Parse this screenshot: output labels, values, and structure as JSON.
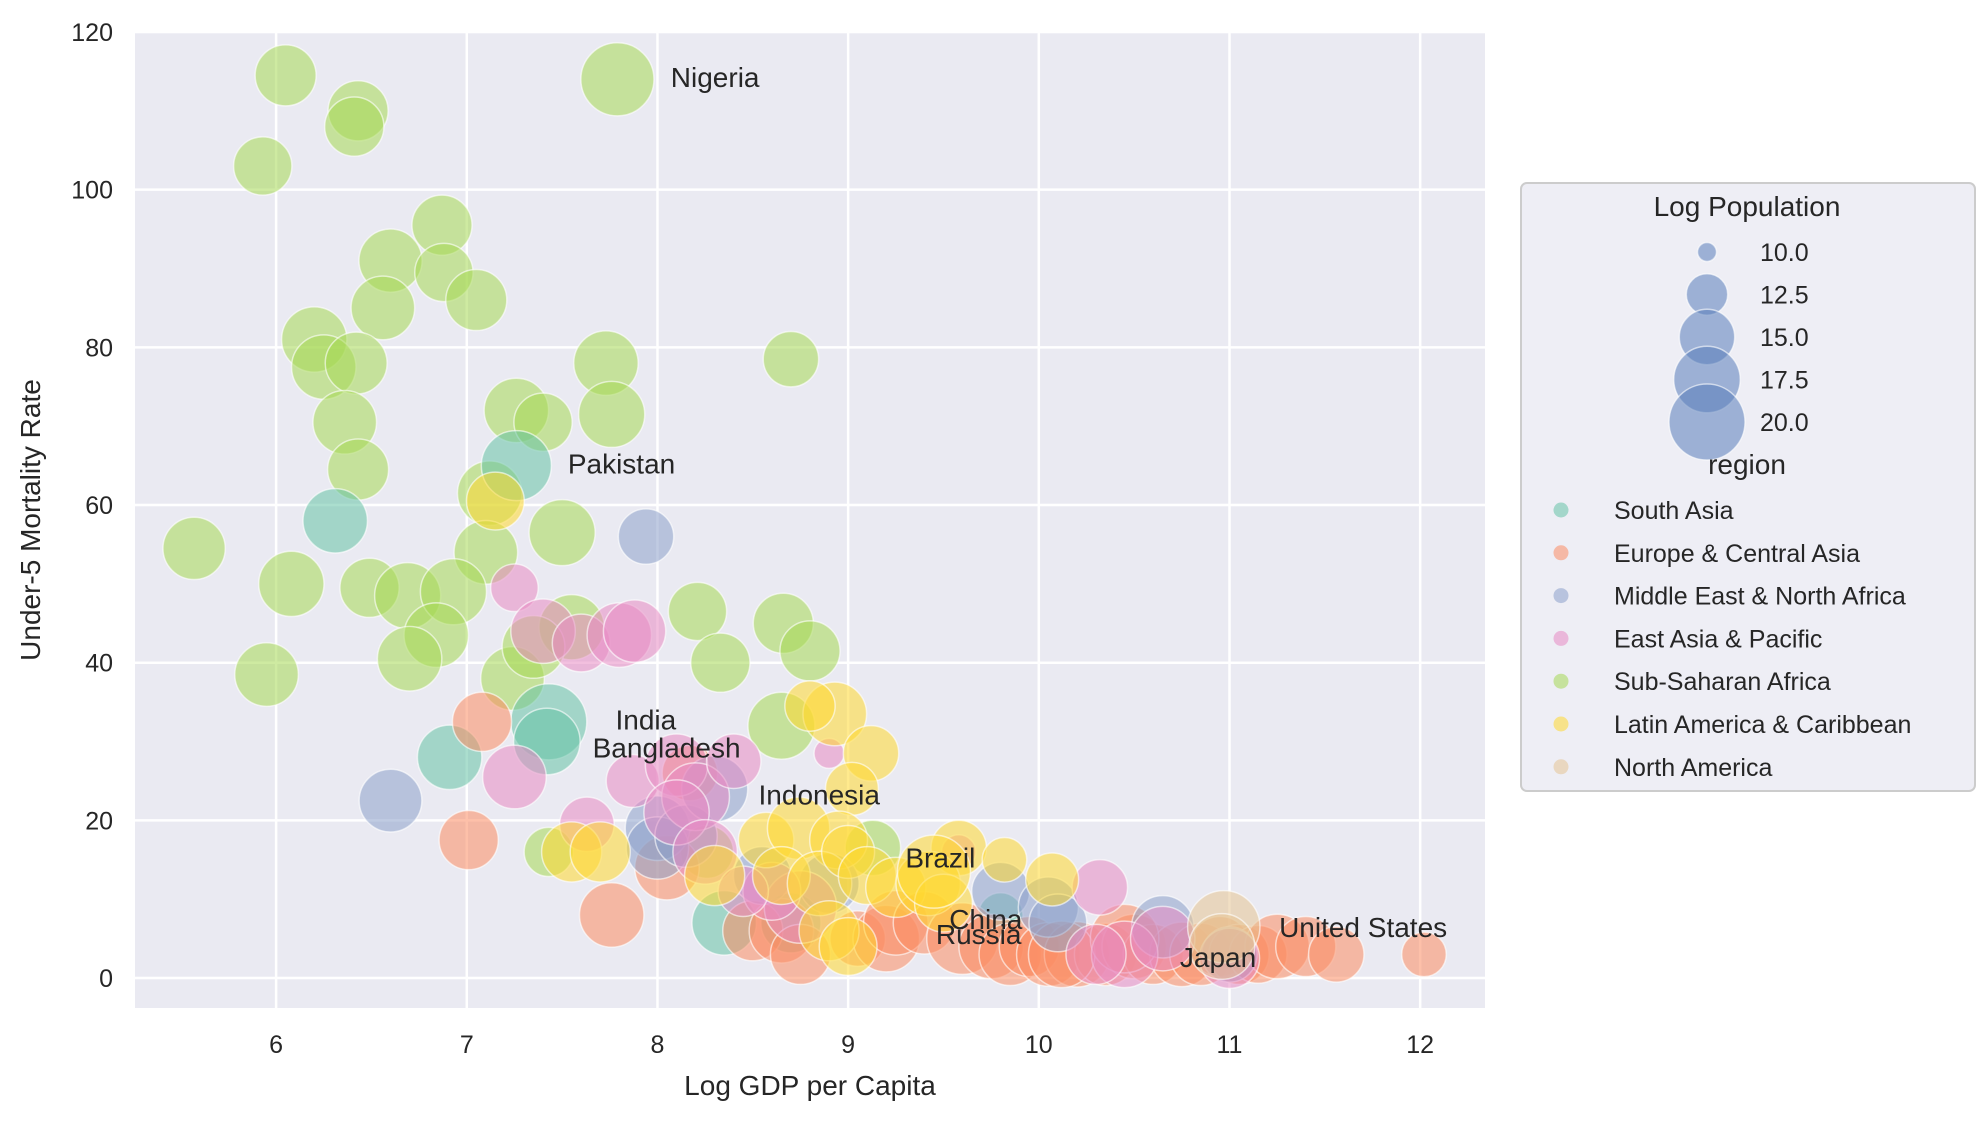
{
  "chart_data": {
    "type": "scatter",
    "title": "",
    "xlabel": "Log GDP per Capita",
    "ylabel": "Under-5 Mortality Rate",
    "xlim": [
      5.26,
      12.34
    ],
    "ylim": [
      -3.8,
      120
    ],
    "xticks": [
      6,
      7,
      8,
      9,
      10,
      11,
      12
    ],
    "yticks": [
      0,
      20,
      40,
      60,
      80,
      100,
      120
    ],
    "grid": true,
    "legend_placement": "right-outside",
    "size_legend": {
      "title": "Log Population",
      "values": [
        10.0,
        12.5,
        15.0,
        17.5,
        20.0
      ],
      "labels": [
        "10.0",
        "12.5",
        "15.0",
        "17.5",
        "20.0"
      ]
    },
    "hue_legend": {
      "title": "region",
      "entries": [
        {
          "name": "South Asia",
          "color": "#66c2a5"
        },
        {
          "name": "Europe & Central Asia",
          "color": "#fc8d62"
        },
        {
          "name": "Middle East & North Africa",
          "color": "#8da0cb"
        },
        {
          "name": "East Asia & Pacific",
          "color": "#e78ac3"
        },
        {
          "name": "Sub-Saharan Africa",
          "color": "#a6d854"
        },
        {
          "name": "Latin America & Caribbean",
          "color": "#ffd92f"
        },
        {
          "name": "North America",
          "color": "#e5c494"
        }
      ]
    },
    "annotations": [
      {
        "text": "Nigeria",
        "x": 8.07,
        "y": 113
      },
      {
        "text": "Pakistan",
        "x": 7.53,
        "y": 64
      },
      {
        "text": "India",
        "x": 7.78,
        "y": 31.5
      },
      {
        "text": "Bangladesh",
        "x": 7.66,
        "y": 28
      },
      {
        "text": "Indonesia",
        "x": 8.53,
        "y": 22
      },
      {
        "text": "Brazil",
        "x": 9.3,
        "y": 14
      },
      {
        "text": "China",
        "x": 9.53,
        "y": 6.2
      },
      {
        "text": "Russia",
        "x": 9.46,
        "y": 4.3
      },
      {
        "text": "Japan",
        "x": 10.74,
        "y": 1.4
      },
      {
        "text": "United States",
        "x": 11.26,
        "y": 5.2
      }
    ],
    "series": [
      {
        "name": "Sub-Saharan Africa",
        "points": [
          [
            6.05,
            114.5,
            16.2
          ],
          [
            6.43,
            110,
            16.0
          ],
          [
            6.41,
            108,
            15.8
          ],
          [
            5.93,
            103,
            15.6
          ],
          [
            7.79,
            114,
            19.2
          ],
          [
            6.87,
            95.5,
            16.0
          ],
          [
            6.6,
            91,
            16.7
          ],
          [
            6.88,
            89.5,
            15.6
          ],
          [
            7.05,
            86,
            16.2
          ],
          [
            6.56,
            85,
            16.8
          ],
          [
            6.2,
            81,
            17.2
          ],
          [
            6.25,
            77.5,
            17.0
          ],
          [
            6.42,
            78,
            16.4
          ],
          [
            8.7,
            78.5,
            15.0
          ],
          [
            7.73,
            78,
            17.0
          ],
          [
            6.36,
            70.5,
            16.8
          ],
          [
            7.26,
            72,
            17.0
          ],
          [
            7.4,
            70.5,
            15.6
          ],
          [
            7.76,
            71.5,
            17.4
          ],
          [
            6.43,
            64.5,
            16.2
          ],
          [
            7.12,
            61.5,
            17.0
          ],
          [
            5.57,
            54.5,
            16.5
          ],
          [
            7.5,
            56.5,
            17.4
          ],
          [
            7.1,
            54,
            16.8
          ],
          [
            6.08,
            50,
            17.2
          ],
          [
            6.49,
            49.5,
            15.8
          ],
          [
            6.69,
            48.5,
            17.4
          ],
          [
            6.93,
            49,
            17.4
          ],
          [
            6.84,
            43.5,
            17.0
          ],
          [
            7.55,
            44.5,
            17.2
          ],
          [
            6.7,
            40.5,
            17.0
          ],
          [
            5.95,
            38.5,
            16.8
          ],
          [
            7.24,
            38,
            16.8
          ],
          [
            7.35,
            42,
            16.6
          ],
          [
            8.21,
            46.5,
            15.6
          ],
          [
            8.66,
            45,
            16.0
          ],
          [
            8.8,
            41.5,
            16.0
          ],
          [
            8.33,
            40,
            15.8
          ],
          [
            8.65,
            32,
            17.6
          ],
          [
            7.43,
            16,
            13.8
          ],
          [
            9.13,
            16.5,
            15.0
          ],
          [
            8.26,
            16,
            14.5
          ]
        ]
      },
      {
        "name": "South Asia",
        "points": [
          [
            7.26,
            65,
            18.4
          ],
          [
            6.31,
            58,
            17.0
          ],
          [
            7.43,
            32.5,
            20.0
          ],
          [
            7.42,
            30,
            17.5
          ],
          [
            6.91,
            28,
            17.0
          ],
          [
            8.35,
            7,
            17.0
          ],
          [
            8.7,
            7,
            16.0
          ],
          [
            9.8,
            8,
            13.0
          ]
        ]
      },
      {
        "name": "Europe & Central Asia",
        "points": [
          [
            7.08,
            32.5,
            15.8
          ],
          [
            7.01,
            17.5,
            15.8
          ],
          [
            7.76,
            8,
            17.0
          ],
          [
            8.17,
            26,
            15.0
          ],
          [
            8.05,
            14,
            17.0
          ],
          [
            8.5,
            6,
            16.0
          ],
          [
            8.65,
            6,
            17.0
          ],
          [
            8.75,
            3,
            16.0
          ],
          [
            9.05,
            5,
            15.0
          ],
          [
            9.2,
            5,
            17.5
          ],
          [
            9.25,
            7,
            17.0
          ],
          [
            9.4,
            7,
            16.5
          ],
          [
            9.6,
            5,
            18.8
          ],
          [
            9.75,
            4,
            17.0
          ],
          [
            9.85,
            3,
            16.5
          ],
          [
            9.95,
            4,
            16.0
          ],
          [
            10.05,
            3,
            16.8
          ],
          [
            10.2,
            3,
            17.2
          ],
          [
            10.35,
            3,
            16.5
          ],
          [
            10.5,
            4,
            17.0
          ],
          [
            10.6,
            3,
            16.0
          ],
          [
            10.75,
            3,
            17.0
          ],
          [
            10.85,
            3,
            16.5
          ],
          [
            10.95,
            4,
            16.0
          ],
          [
            11.05,
            3,
            16.0
          ],
          [
            11.15,
            3,
            15.5
          ],
          [
            11.25,
            4,
            17.0
          ],
          [
            11.4,
            4,
            16.0
          ],
          [
            11.56,
            3,
            15.0
          ],
          [
            12.02,
            3,
            13.0
          ],
          [
            10.12,
            3,
            17.5
          ],
          [
            10.45,
            5,
            18.0
          ]
        ]
      },
      {
        "name": "Middle East & North Africa",
        "points": [
          [
            7.94,
            56,
            15.0
          ],
          [
            6.6,
            22.5,
            16.6
          ],
          [
            8.0,
            19,
            17.0
          ],
          [
            8.0,
            16.5,
            16.5
          ],
          [
            8.15,
            18,
            16.5
          ],
          [
            8.3,
            24,
            17.4
          ],
          [
            8.55,
            13,
            15.5
          ],
          [
            8.9,
            12,
            16.0
          ],
          [
            9.8,
            11,
            15.5
          ],
          [
            10.05,
            9,
            16.0
          ],
          [
            10.1,
            7,
            15.5
          ],
          [
            10.65,
            6.5,
            16.5
          ],
          [
            11.0,
            3,
            15.0
          ]
        ]
      },
      {
        "name": "East Asia & Pacific",
        "points": [
          [
            7.25,
            49.5,
            13.5
          ],
          [
            7.4,
            44,
            17.0
          ],
          [
            7.6,
            42.5,
            15.5
          ],
          [
            7.8,
            43.5,
            17.0
          ],
          [
            7.88,
            44,
            16.5
          ],
          [
            7.25,
            25.5,
            16.8
          ],
          [
            7.63,
            19.5,
            14.8
          ],
          [
            7.87,
            25,
            14.5
          ],
          [
            8.1,
            27,
            16.5
          ],
          [
            8.2,
            23,
            17.8
          ],
          [
            8.1,
            21,
            17.2
          ],
          [
            8.25,
            16,
            17.0
          ],
          [
            8.4,
            27.5,
            14.8
          ],
          [
            8.9,
            28.5,
            11.0
          ],
          [
            8.75,
            9,
            19.0
          ],
          [
            8.6,
            11,
            15.5
          ],
          [
            8.45,
            11,
            14.0
          ],
          [
            10.32,
            11.5,
            15.0
          ],
          [
            10.45,
            3,
            17.5
          ],
          [
            10.3,
            3,
            16.0
          ],
          [
            10.65,
            5,
            17.0
          ],
          [
            11.0,
            2.5,
            16.0
          ],
          [
            9.58,
            16,
            11.5
          ]
        ]
      },
      {
        "name": "Latin America & Caribbean",
        "points": [
          [
            7.15,
            60.5,
            15.5
          ],
          [
            8.93,
            33.5,
            16.8
          ],
          [
            8.8,
            34.5,
            14.0
          ],
          [
            9.12,
            28.5,
            15.0
          ],
          [
            9.02,
            24,
            14.5
          ],
          [
            8.57,
            17.5,
            15.0
          ],
          [
            8.74,
            19,
            16.5
          ],
          [
            8.95,
            17.5,
            15.5
          ],
          [
            8.3,
            13,
            16.0
          ],
          [
            8.65,
            13,
            15.5
          ],
          [
            8.85,
            12,
            17.0
          ],
          [
            9.0,
            16,
            14.5
          ],
          [
            9.1,
            13,
            15.5
          ],
          [
            9.25,
            11.5,
            16.0
          ],
          [
            9.58,
            16.5,
            15.0
          ],
          [
            9.42,
            12,
            17.0
          ],
          [
            9.5,
            9.5,
            15.5
          ],
          [
            9.82,
            15,
            13.0
          ],
          [
            10.07,
            12.5,
            14.5
          ],
          [
            9.45,
            13.5,
            19.2
          ],
          [
            7.55,
            16,
            16.0
          ],
          [
            7.7,
            16,
            16.0
          ],
          [
            8.9,
            6,
            16.0
          ],
          [
            9.0,
            4,
            15.5
          ]
        ]
      },
      {
        "name": "North America",
        "points": [
          [
            10.97,
            6.5,
            19.0
          ],
          [
            10.96,
            4,
            17.3
          ]
        ]
      }
    ]
  }
}
